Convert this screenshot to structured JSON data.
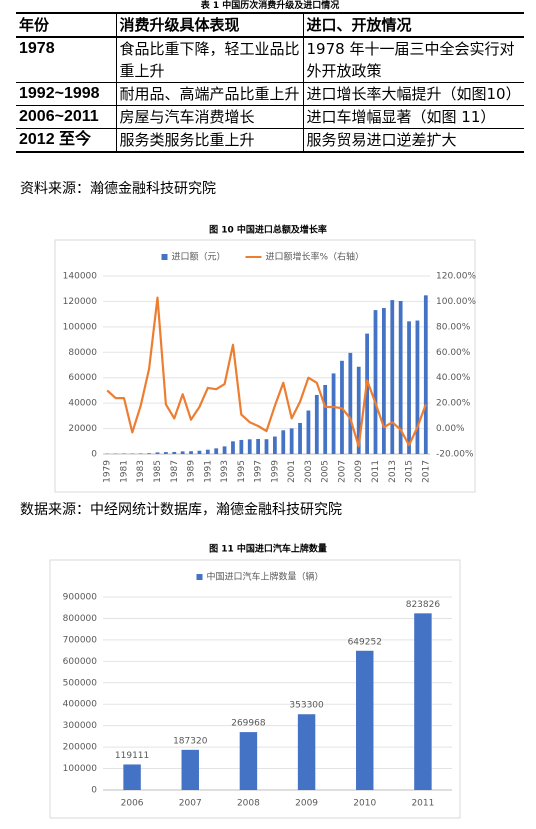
{
  "table": {
    "caption": "表 1 中国历次消费升级及进口情况",
    "header": [
      "年份",
      "消费升级具体表现",
      "进口、开放情况"
    ],
    "rows": [
      [
        "1978",
        "食品比重下降，轻工业品比重上升",
        "1978 年十一届三中全会实行对外开放政策"
      ],
      [
        "1992~1998",
        "耐用品、高端产品比重上升",
        "进口增长率大幅提升（如图10）"
      ],
      [
        "2006~2011",
        "房屋与汽车消费增长",
        "进口车增幅显著（如图 11）"
      ],
      [
        "2012 至今",
        "服务类服务比重上升",
        "服务贸易进口逆差扩大"
      ]
    ],
    "source": "资料来源：瀚德金融科技研究院"
  },
  "source2": "数据来源：中经网统计数据库，瀚德金融科技研究院",
  "chart_data": [
    {
      "type": "combo",
      "title": "图 10 中国进口总额及增长率",
      "categories": [
        "1979",
        null,
        "1981",
        null,
        "1983",
        null,
        "1985",
        null,
        "1987",
        null,
        "1989",
        null,
        "1991",
        null,
        "1993",
        null,
        "1995",
        null,
        "1997",
        null,
        "1999",
        null,
        "2001",
        null,
        "2003",
        null,
        "2005",
        null,
        "2007",
        null,
        "2009",
        null,
        "2011",
        null,
        "2013",
        null,
        "2015",
        null,
        "2017"
      ],
      "series": [
        {
          "name": "进口额（元）",
          "color": "#4472c4",
          "type": "bar",
          "values": [
            243,
            299,
            368,
            358,
            422,
            620,
            1258,
            1498,
            1614,
            2055,
            2200,
            2574,
            3399,
            4443,
            5986,
            9960,
            11048,
            11557,
            11807,
            11626,
            13736,
            18639,
            20159,
            24430,
            34196,
            46436,
            54274,
            63377,
            73300,
            79527,
            68618,
            94700,
            113161,
            114801,
            121038,
            120358,
            104336,
            104967,
            124790
          ]
        },
        {
          "name": "进口额增长率%（右轴）",
          "color": "#ed7d31",
          "type": "line",
          "axis": "y2",
          "values": [
            30,
            24,
            24,
            -3,
            18,
            47,
            103,
            19,
            8,
            27,
            7,
            17,
            32,
            31,
            35,
            66,
            11,
            5,
            2,
            -2,
            18,
            36,
            8,
            21,
            40,
            36,
            17,
            17,
            16,
            8,
            -14,
            38,
            20,
            1,
            5,
            -1,
            -13,
            1,
            19
          ]
        }
      ],
      "ylim": [
        0,
        140000
      ],
      "yticks": [
        0,
        20000,
        40000,
        60000,
        80000,
        100000,
        120000,
        140000
      ],
      "y2lim": [
        -20,
        120
      ],
      "y2ticks": [
        {
          "value": -20,
          "label": "-20.00%"
        },
        {
          "value": 0,
          "label": "0.00%"
        },
        {
          "value": 20,
          "label": "20.00%"
        },
        {
          "value": 40,
          "label": "40.00%"
        },
        {
          "value": 60,
          "label": "60.00%"
        },
        {
          "value": 80,
          "label": "80.00%"
        },
        {
          "value": 100,
          "label": "100.00%"
        },
        {
          "value": 120,
          "label": "120.00%"
        }
      ],
      "grid": true
    },
    {
      "type": "bar",
      "title": "图 11 中国进口汽车上牌数量",
      "categories": [
        "2006",
        "2007",
        "2008",
        "2009",
        "2010",
        "2011"
      ],
      "series": [
        {
          "name": "中国进口汽车上牌数量（辆）",
          "color": "#4472c4",
          "type": "bar",
          "values": [
            119111,
            187320,
            269968,
            353300,
            649252,
            823826
          ]
        }
      ],
      "ylim": [
        0,
        900000
      ],
      "yticks": [
        0,
        100000,
        200000,
        300000,
        400000,
        500000,
        600000,
        700000,
        800000,
        900000
      ],
      "grid": true,
      "data_labels": true
    }
  ]
}
